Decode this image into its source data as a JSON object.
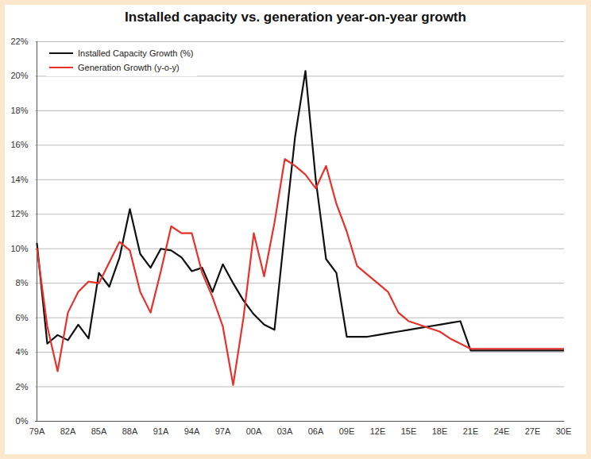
{
  "chart_data": {
    "type": "line",
    "title": "Installed capacity vs. generation year-on-year growth",
    "categories": [
      "79A",
      null,
      null,
      "82A",
      null,
      null,
      "85A",
      null,
      null,
      "88A",
      null,
      null,
      "91A",
      null,
      null,
      "94A",
      null,
      null,
      "97A",
      null,
      null,
      "00A",
      null,
      null,
      "03A",
      null,
      null,
      "06A",
      null,
      null,
      "09E",
      null,
      null,
      "12E",
      null,
      null,
      "15E",
      null,
      null,
      "18E",
      null,
      null,
      "21E",
      null,
      null,
      "24E",
      null,
      null,
      "27E",
      null,
      null,
      "30E"
    ],
    "series": [
      {
        "name": "Installed Capacity Growth (%)",
        "color": "#111111",
        "values": [
          10.3,
          4.5,
          5.0,
          4.7,
          5.6,
          4.8,
          8.6,
          7.8,
          9.5,
          12.3,
          9.7,
          8.9,
          10.0,
          9.9,
          9.5,
          8.7,
          8.9,
          7.5,
          9.1,
          8.0,
          7.0,
          6.2,
          5.6,
          5.3,
          11.0,
          16.5,
          20.3,
          14.0,
          9.4,
          8.6,
          4.9,
          4.9,
          4.9,
          5.0,
          5.1,
          5.2,
          5.3,
          5.4,
          5.5,
          5.6,
          5.7,
          5.8,
          4.1,
          4.1,
          4.1,
          4.1,
          4.1,
          4.1,
          4.1,
          4.1,
          4.1,
          4.1
        ]
      },
      {
        "name": "Generation Growth (y-o-y)",
        "color": "#e8312a",
        "values": [
          10.0,
          5.5,
          2.9,
          6.3,
          7.5,
          8.1,
          8.0,
          9.2,
          10.4,
          9.9,
          7.5,
          6.3,
          8.7,
          11.3,
          10.9,
          10.9,
          8.6,
          7.2,
          5.5,
          2.1,
          6.0,
          10.9,
          8.4,
          11.5,
          15.2,
          14.8,
          14.3,
          13.5,
          14.8,
          12.6,
          11.0,
          9.0,
          8.5,
          8.0,
          7.5,
          6.3,
          5.8,
          5.6,
          5.4,
          5.2,
          4.8,
          4.5,
          4.2,
          4.2,
          4.2,
          4.2,
          4.2,
          4.2,
          4.2,
          4.2,
          4.2,
          4.2
        ]
      }
    ],
    "ylim": [
      0,
      22
    ],
    "yticks": [
      {
        "value": 0,
        "label": "0%"
      },
      {
        "value": 2,
        "label": "2%"
      },
      {
        "value": 4,
        "label": "4%"
      },
      {
        "value": 6,
        "label": "6%"
      },
      {
        "value": 8,
        "label": "8%"
      },
      {
        "value": 10,
        "label": "10%"
      },
      {
        "value": 12,
        "label": "12%"
      },
      {
        "value": 14,
        "label": "14%"
      },
      {
        "value": 16,
        "label": "16%"
      },
      {
        "value": 18,
        "label": "18%"
      },
      {
        "value": 20,
        "label": "20%"
      },
      {
        "value": 22,
        "label": "22%"
      }
    ],
    "grid": true,
    "legend": "top-left"
  }
}
